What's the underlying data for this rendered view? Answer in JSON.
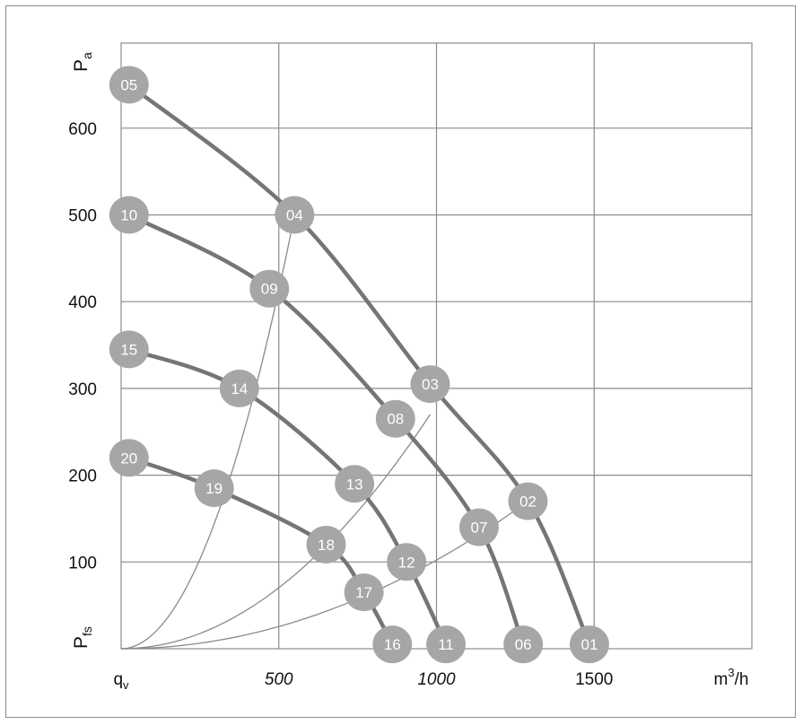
{
  "chart_data": {
    "type": "line",
    "title": "",
    "xlim": [
      0,
      2000
    ],
    "ylim": [
      0,
      700
    ],
    "grid": true,
    "x_ticks": [
      {
        "value": 0,
        "label": "q",
        "sub": "v"
      },
      {
        "value": 500,
        "label": "500",
        "italic": true
      },
      {
        "value": 1000,
        "label": "1000",
        "italic": true
      },
      {
        "value": 1500,
        "label": "1500"
      },
      {
        "value": 2000,
        "label": "m",
        "sup": "3",
        "suffix": "/h"
      }
    ],
    "y_ticks": [
      {
        "value": 100,
        "label": "100"
      },
      {
        "value": 200,
        "label": "200"
      },
      {
        "value": 300,
        "label": "300"
      },
      {
        "value": 400,
        "label": "400"
      },
      {
        "value": 500,
        "label": "500"
      },
      {
        "value": 600,
        "label": "600"
      }
    ],
    "y_axis_top_label": {
      "label": "P",
      "sub": "a"
    },
    "y_axis_bottom_label": {
      "label": "P",
      "sub": "fs"
    },
    "fan_curves": [
      {
        "points": [
          [
            25,
            650
          ],
          [
            550,
            500
          ],
          [
            980,
            305
          ],
          [
            1290,
            170
          ],
          [
            1485,
            5
          ]
        ]
      },
      {
        "points": [
          [
            25,
            500
          ],
          [
            470,
            415
          ],
          [
            870,
            265
          ],
          [
            1135,
            140
          ],
          [
            1275,
            5
          ]
        ]
      },
      {
        "points": [
          [
            25,
            345
          ],
          [
            375,
            300
          ],
          [
            740,
            190
          ],
          [
            905,
            100
          ],
          [
            1030,
            5
          ]
        ]
      },
      {
        "points": [
          [
            25,
            220
          ],
          [
            295,
            185
          ],
          [
            650,
            120
          ],
          [
            770,
            65
          ],
          [
            860,
            5
          ]
        ]
      }
    ],
    "system_curves": [
      {
        "points": [
          [
            0,
            0
          ],
          [
            550,
            500
          ]
        ]
      },
      {
        "points": [
          [
            0,
            0
          ],
          [
            980,
            270
          ]
        ]
      },
      {
        "points": [
          [
            0,
            0
          ],
          [
            1290,
            170
          ]
        ]
      }
    ],
    "operating_points": [
      {
        "id": "01",
        "x": 1485,
        "y": 5
      },
      {
        "id": "02",
        "x": 1290,
        "y": 170
      },
      {
        "id": "03",
        "x": 980,
        "y": 305
      },
      {
        "id": "04",
        "x": 550,
        "y": 500
      },
      {
        "id": "05",
        "x": 25,
        "y": 650
      },
      {
        "id": "06",
        "x": 1275,
        "y": 5
      },
      {
        "id": "07",
        "x": 1135,
        "y": 140
      },
      {
        "id": "08",
        "x": 870,
        "y": 265
      },
      {
        "id": "09",
        "x": 470,
        "y": 415
      },
      {
        "id": "10",
        "x": 25,
        "y": 500
      },
      {
        "id": "11",
        "x": 1030,
        "y": 5
      },
      {
        "id": "12",
        "x": 905,
        "y": 100
      },
      {
        "id": "13",
        "x": 740,
        "y": 190
      },
      {
        "id": "14",
        "x": 375,
        "y": 300
      },
      {
        "id": "15",
        "x": 25,
        "y": 345
      },
      {
        "id": "16",
        "x": 860,
        "y": 5
      },
      {
        "id": "17",
        "x": 770,
        "y": 65
      },
      {
        "id": "18",
        "x": 650,
        "y": 120
      },
      {
        "id": "19",
        "x": 295,
        "y": 185
      },
      {
        "id": "20",
        "x": 25,
        "y": 220
      }
    ],
    "colors": {
      "grid": "#8c8c8c",
      "fan_curve": "#757575",
      "system_curve": "#8a8a8a",
      "marker": "#a6a6a6",
      "marker_text": "#ffffff"
    }
  }
}
